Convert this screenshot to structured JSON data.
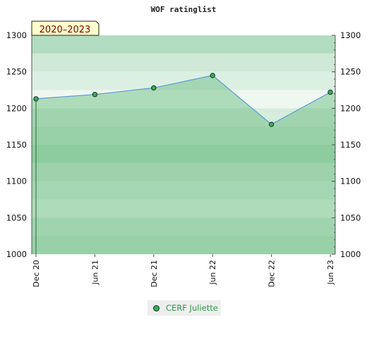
{
  "chart_data": {
    "type": "area",
    "title": "WOF ratinglist",
    "period_label": "2020–2023",
    "categories": [
      "Dec 20",
      "Jun 21",
      "Dec 21",
      "Jun 22",
      "Dec 22",
      "Jun 23"
    ],
    "series": [
      {
        "name": "CERF Juliette",
        "values": [
          1213,
          1219,
          1228,
          1245,
          1178,
          1222
        ]
      }
    ],
    "ylim": [
      1000,
      1300
    ],
    "yticks": [
      1000,
      1050,
      1100,
      1150,
      1200,
      1250,
      1300
    ],
    "y_axis": "both sides",
    "legend_position": "bottom",
    "colors": {
      "line": "#5b9bd5",
      "fill": "#9fd0ab",
      "marker": "#3aa85c",
      "legend_text": "#2e9a4a",
      "badge_bg": "#ffffcc",
      "badge_text": "#800000"
    }
  }
}
